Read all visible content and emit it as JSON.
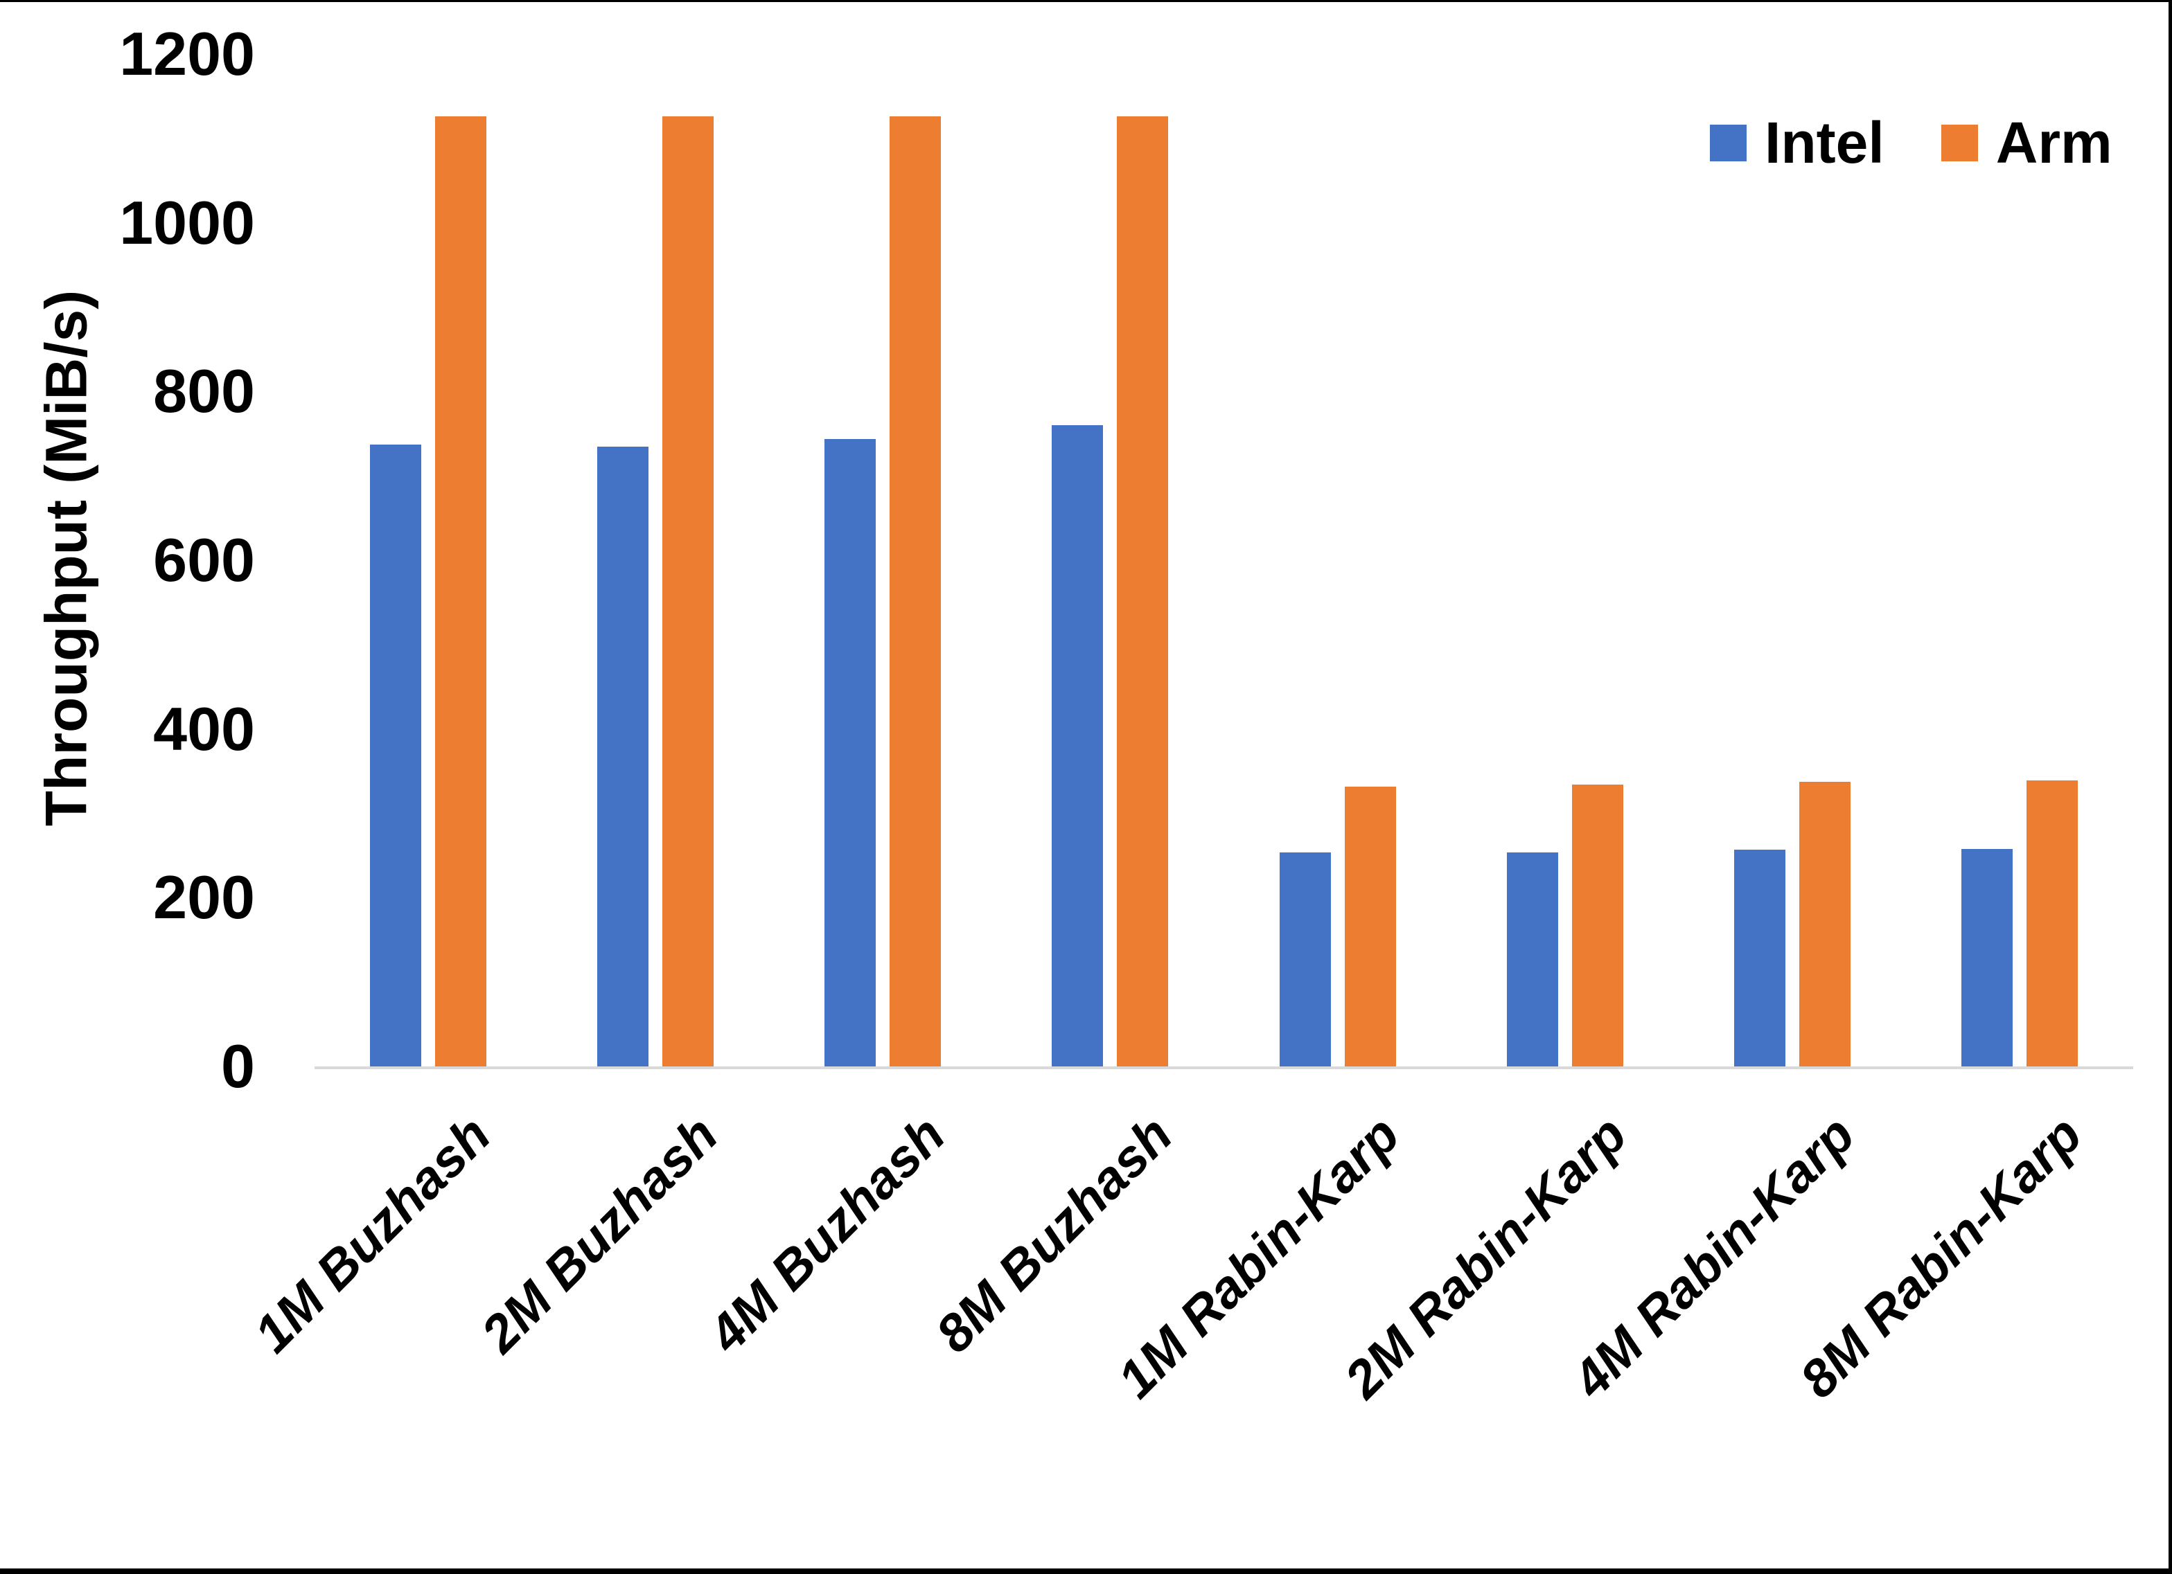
{
  "chart_data": {
    "type": "bar",
    "title": "",
    "ylabel": "Throughput (MiB/s)",
    "xlabel": "",
    "categories": [
      "1M Buzhash",
      "2M Buzhash",
      "4M Buzhash",
      "8M Buzhash",
      "1M Rabin-Karp",
      "2M Rabin-Karp",
      "4M Rabin-Karp",
      "8M Rabin-Karp"
    ],
    "series": [
      {
        "name": "Intel",
        "color": "#4472C4",
        "values": [
          737,
          735,
          744,
          760,
          254,
          254,
          257,
          258
        ]
      },
      {
        "name": "Arm",
        "color": "#ED7D31",
        "values": [
          1126,
          1126,
          1126,
          1126,
          332,
          334,
          337,
          339
        ]
      }
    ],
    "ylim": [
      0,
      1200
    ],
    "yticks": [
      0,
      200,
      400,
      600,
      800,
      1000,
      1200
    ],
    "grid": false,
    "legend_position": "top-right",
    "colors": {
      "axis_line": "#D9D9D9",
      "text": "#000000",
      "frame": "#000000",
      "background": "#FFFFFF"
    }
  }
}
